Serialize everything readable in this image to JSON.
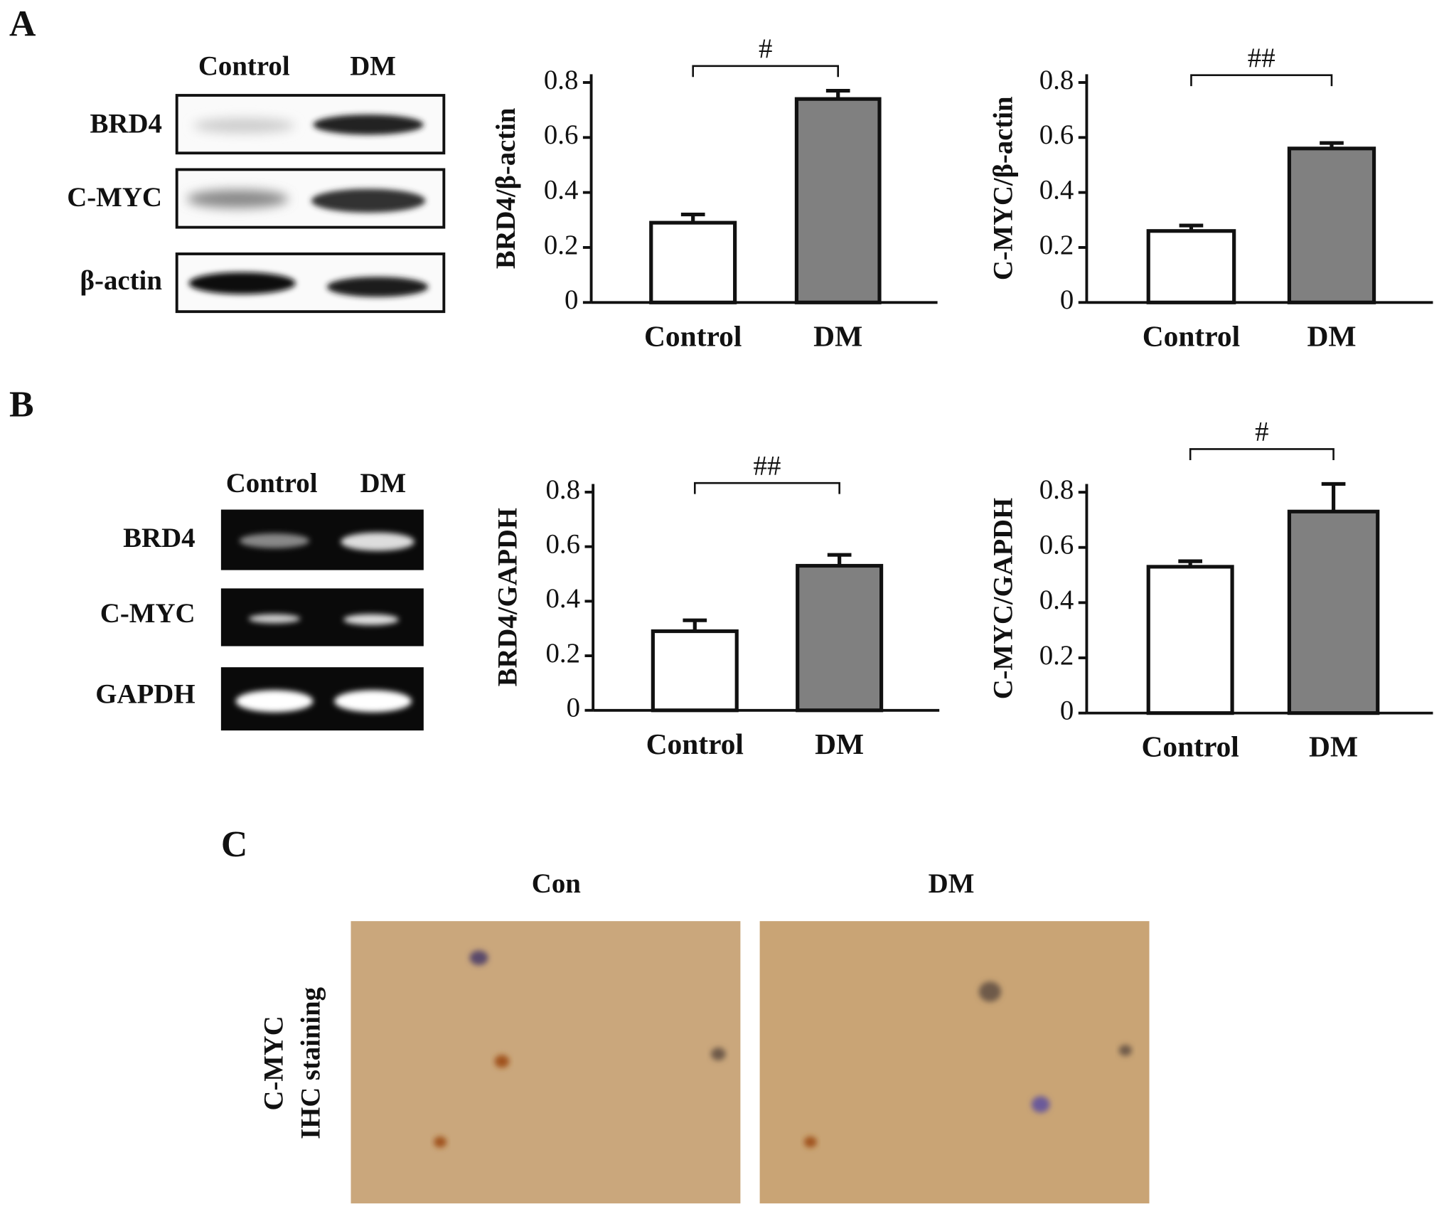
{
  "panel_labels": [
    "A",
    "B",
    "C"
  ],
  "western_blot": {
    "columns": [
      "Control",
      "DM"
    ],
    "rows": [
      "BRD4",
      "C-MYC",
      "β-actin"
    ]
  },
  "gel": {
    "columns": [
      "Control",
      "DM"
    ],
    "rows": [
      "BRD4",
      "C-MYC",
      "GAPDH"
    ]
  },
  "ihc": {
    "columns": [
      "Con",
      "DM"
    ],
    "row_label": [
      "C-MYC",
      "IHC staining"
    ]
  },
  "chart_data": [
    {
      "type": "bar",
      "y_label": "BRD4/β-actin",
      "categories": [
        "Control",
        "DM"
      ],
      "values": [
        0.29,
        0.74
      ],
      "errors": [
        0.03,
        0.03
      ],
      "colors": [
        "#ffffff",
        "#808080"
      ],
      "ylim": [
        0,
        0.83
      ],
      "yticks": [
        0,
        0.2,
        0.4,
        0.6,
        0.8
      ],
      "annotation": "#"
    },
    {
      "type": "bar",
      "y_label": "C-MYC/β-actin",
      "categories": [
        "Control",
        "DM"
      ],
      "values": [
        0.26,
        0.56
      ],
      "errors": [
        0.02,
        0.02
      ],
      "colors": [
        "#ffffff",
        "#808080"
      ],
      "ylim": [
        0,
        0.83
      ],
      "yticks": [
        0,
        0.2,
        0.4,
        0.6,
        0.8
      ],
      "annotation": "##"
    },
    {
      "type": "bar",
      "y_label": "BRD4/GAPDH",
      "categories": [
        "Control",
        "DM"
      ],
      "values": [
        0.29,
        0.53
      ],
      "errors": [
        0.04,
        0.04
      ],
      "colors": [
        "#ffffff",
        "#808080"
      ],
      "ylim": [
        0,
        0.83
      ],
      "yticks": [
        0,
        0.2,
        0.4,
        0.6,
        0.8
      ],
      "annotation": "##"
    },
    {
      "type": "bar",
      "y_label": "C-MYC/GAPDH",
      "categories": [
        "Control",
        "DM"
      ],
      "values": [
        0.53,
        0.73
      ],
      "errors": [
        0.02,
        0.1
      ],
      "colors": [
        "#ffffff",
        "#808080"
      ],
      "ylim": [
        0,
        0.83
      ],
      "yticks": [
        0,
        0.2,
        0.4,
        0.6,
        0.8
      ],
      "annotation": "#"
    }
  ]
}
